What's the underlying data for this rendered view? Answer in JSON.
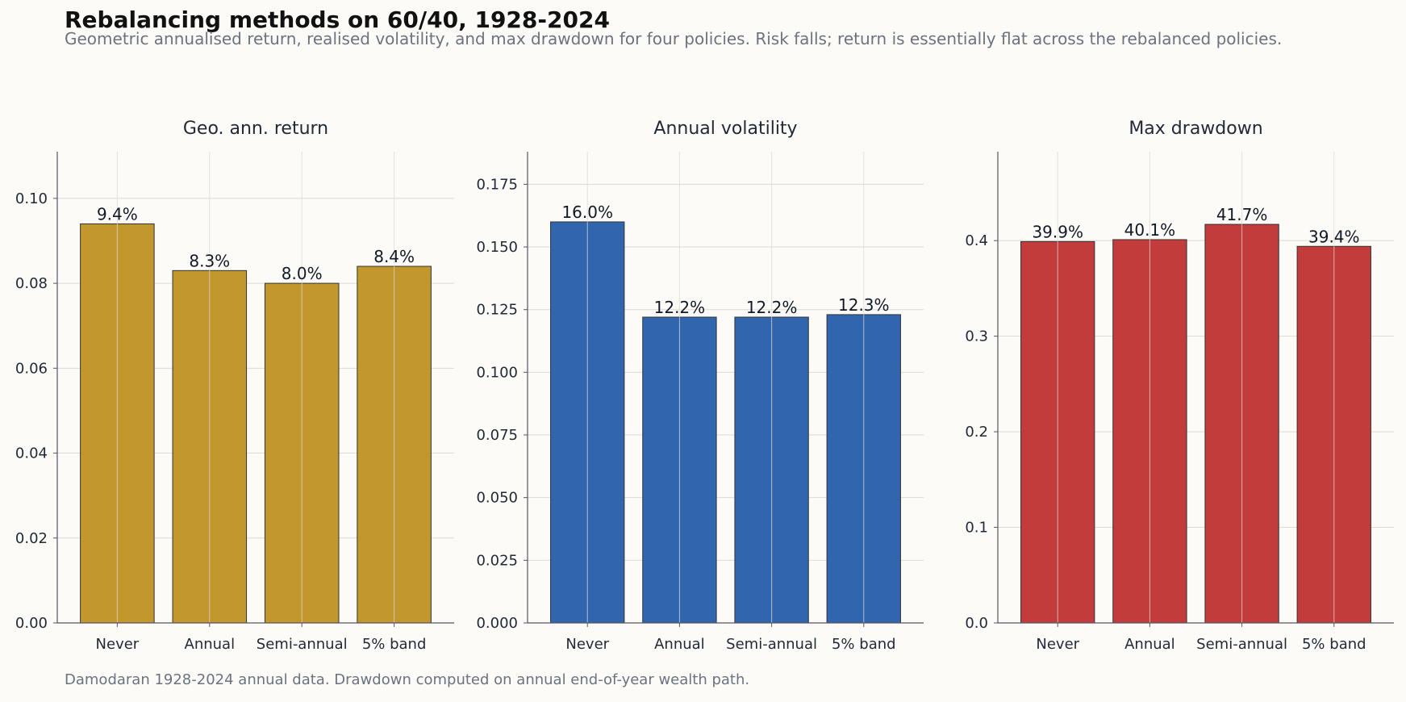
{
  "title": "Rebalancing methods on 60/40, 1928-2024",
  "subtitle": "Geometric annualised return, realised volatility, and max drawdown for four policies. Risk falls; return is essentially flat across the rebalanced policies.",
  "footnote": "Damodaran 1928-2024 annual data. Drawdown computed on annual end-of-year wealth path.",
  "chart_data": [
    {
      "type": "bar",
      "title": "Geo. ann. return",
      "categories": [
        "Never",
        "Annual",
        "Semi-annual",
        "5% band"
      ],
      "values": [
        0.094,
        0.083,
        0.08,
        0.084
      ],
      "data_labels": [
        "9.4%",
        "8.3%",
        "8.0%",
        "8.4%"
      ],
      "ylim": [
        0,
        0.111
      ],
      "yticks": [
        0.0,
        0.02,
        0.04,
        0.06,
        0.08,
        0.1
      ],
      "ytick_labels": [
        "0.00",
        "0.02",
        "0.04",
        "0.06",
        "0.08",
        "0.10"
      ],
      "color": "#c2982e",
      "grid": true
    },
    {
      "type": "bar",
      "title": "Annual volatility",
      "categories": [
        "Never",
        "Annual",
        "Semi-annual",
        "5% band"
      ],
      "values": [
        0.16,
        0.122,
        0.122,
        0.123
      ],
      "data_labels": [
        "16.0%",
        "12.2%",
        "12.2%",
        "12.3%"
      ],
      "ylim": [
        0,
        0.188
      ],
      "yticks": [
        0.0,
        0.025,
        0.05,
        0.075,
        0.1,
        0.125,
        0.15,
        0.175
      ],
      "ytick_labels": [
        "0.000",
        "0.025",
        "0.050",
        "0.075",
        "0.100",
        "0.125",
        "0.150",
        "0.175"
      ],
      "color": "#3165ae",
      "grid": true
    },
    {
      "type": "bar",
      "title": "Max drawdown",
      "categories": [
        "Never",
        "Annual",
        "Semi-annual",
        "5% band"
      ],
      "values": [
        0.399,
        0.401,
        0.417,
        0.394
      ],
      "data_labels": [
        "39.9%",
        "40.1%",
        "41.7%",
        "39.4%"
      ],
      "ylim": [
        0,
        0.493
      ],
      "yticks": [
        0.0,
        0.1,
        0.2,
        0.3,
        0.4
      ],
      "ytick_labels": [
        "0.0",
        "0.1",
        "0.2",
        "0.3",
        "0.4"
      ],
      "color": "#c23c3b",
      "grid": true
    }
  ]
}
